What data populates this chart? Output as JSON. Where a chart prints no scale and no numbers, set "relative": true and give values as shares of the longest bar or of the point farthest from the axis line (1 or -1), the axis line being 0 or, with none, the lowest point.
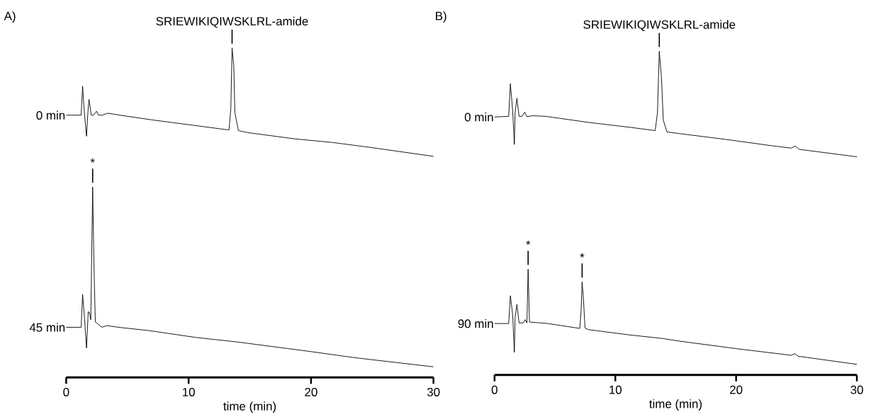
{
  "chart_data": [
    {
      "type": "line",
      "relative": true,
      "title": "A)",
      "xlabel": "time (min)",
      "xlim": [
        0,
        30
      ],
      "xticks": [
        0,
        10,
        20,
        30
      ],
      "series": [
        {
          "name": "0 min",
          "color": "#000000",
          "x": [
            0,
            1.22,
            1.34,
            1.47,
            1.66,
            1.77,
            1.86,
            2.05,
            2.24,
            2.47,
            2.64,
            2.93,
            3.39,
            4.55,
            7.14,
            10.22,
            13.3,
            13.45,
            13.55,
            13.69,
            13.78,
            14.07,
            14.84,
            18.68,
            21.77,
            24.46,
            30
          ],
          "values": [
            0.796,
            0.796,
            0.884,
            0.81,
            0.732,
            0.803,
            0.844,
            0.796,
            0.796,
            0.808,
            0.796,
            0.796,
            0.802,
            0.795,
            0.781,
            0.766,
            0.751,
            0.817,
            1,
            0.946,
            0.803,
            0.749,
            0.743,
            0.724,
            0.713,
            0.7,
            0.671
          ]
        },
        {
          "name": "45 min",
          "color": "#000000",
          "x": [
            0,
            1.22,
            1.34,
            1.49,
            1.66,
            1.8,
            1.9,
            2.01,
            2.16,
            2.28,
            2.38,
            2.53,
            2.91,
            3.3,
            4.5,
            6.76,
            10.61,
            14.07,
            20.03,
            23.5,
            30
          ],
          "values": [
            0.152,
            0.152,
            0.252,
            0.182,
            0.089,
            0.199,
            0.197,
            0.175,
            0.578,
            0.318,
            0.168,
            0.164,
            0.152,
            0.157,
            0.151,
            0.142,
            0.121,
            0.107,
            0.078,
            0.06,
            0.032
          ]
        }
      ],
      "annotations": [
        {
          "text": "SRIEWIKIQIWSKLRL-amide",
          "x": 13.55,
          "y": 1
        },
        {
          "text": "*",
          "x": 2.16,
          "y": 0.578
        }
      ]
    },
    {
      "type": "line",
      "relative": true,
      "title": "B)",
      "xlabel": "time (min)",
      "xlim": [
        0,
        30
      ],
      "xticks": [
        0,
        10,
        20,
        30
      ],
      "series": [
        {
          "name": "0 min",
          "color": "#000000",
          "x": [
            0,
            1.17,
            1.31,
            1.5,
            1.64,
            1.7,
            1.85,
            2.03,
            2.28,
            2.5,
            2.68,
            3.16,
            4.23,
            7.84,
            11.25,
            13.3,
            13.49,
            13.64,
            13.82,
            13.97,
            14.27,
            15.25,
            19.1,
            23.0,
            24.56,
            24.91,
            25.24,
            30
          ],
          "values": [
            0.797,
            0.799,
            0.9,
            0.817,
            0.712,
            0.81,
            0.855,
            0.799,
            0.799,
            0.812,
            0.798,
            0.801,
            0.799,
            0.78,
            0.765,
            0.755,
            0.81,
            1,
            0.919,
            0.788,
            0.751,
            0.746,
            0.728,
            0.708,
            0.701,
            0.707,
            0.697,
            0.674
          ]
        },
        {
          "name": "90 min",
          "color": "#000000",
          "x": [
            0,
            1.17,
            1.31,
            1.5,
            1.64,
            1.7,
            1.85,
            2.03,
            2.38,
            2.53,
            2.68,
            2.78,
            2.89,
            3.05,
            4.23,
            7.06,
            7.17,
            7.25,
            7.37,
            7.49,
            7.8,
            11.15,
            13.88,
            15.25,
            20.12,
            24.56,
            24.85,
            25.15,
            30
          ],
          "values": [
            0.159,
            0.159,
            0.245,
            0.186,
            0.07,
            0.178,
            0.218,
            0.161,
            0.161,
            0.171,
            0.161,
            0.327,
            0.164,
            0.163,
            0.16,
            0.144,
            0.2,
            0.288,
            0.229,
            0.145,
            0.14,
            0.124,
            0.113,
            0.105,
            0.081,
            0.061,
            0.066,
            0.058,
            0.033
          ]
        }
      ],
      "annotations": [
        {
          "text": "SRIEWIKIQIWSKLRL-amide",
          "x": 13.64,
          "y": 1
        },
        {
          "text": "*",
          "x": 2.78,
          "y": 0.327
        },
        {
          "text": "*",
          "x": 7.25,
          "y": 0.288
        }
      ]
    }
  ]
}
